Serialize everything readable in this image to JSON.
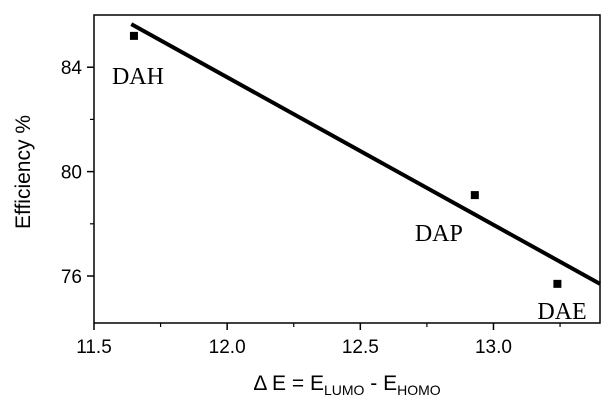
{
  "chart_data": {
    "type": "scatter",
    "xlabel": {
      "main": "Δ E = E",
      "sub1": "LUMO",
      "mid": " -  E",
      "sub2": "HOMO"
    },
    "ylabel": "Efficiency %",
    "xlim": [
      11.5,
      13.4
    ],
    "ylim": [
      74.2,
      86.0
    ],
    "x_ticks": [
      11.5,
      12.0,
      12.5,
      13.0
    ],
    "x_tick_labels": [
      "11.5",
      "12.0",
      "12.5",
      "13.0"
    ],
    "y_ticks": [
      76,
      80,
      84
    ],
    "y_tick_labels": [
      "76",
      "80",
      "84"
    ],
    "points": [
      {
        "label": "DAH",
        "x": 11.65,
        "y": 85.2
      },
      {
        "label": "DAP",
        "x": 12.93,
        "y": 79.1
      },
      {
        "label": "DAE",
        "x": 13.24,
        "y": 75.7
      }
    ],
    "fit_line": {
      "x": [
        11.64,
        13.4
      ],
      "y": [
        85.65,
        75.7
      ]
    },
    "grid": false,
    "legend": "none"
  }
}
